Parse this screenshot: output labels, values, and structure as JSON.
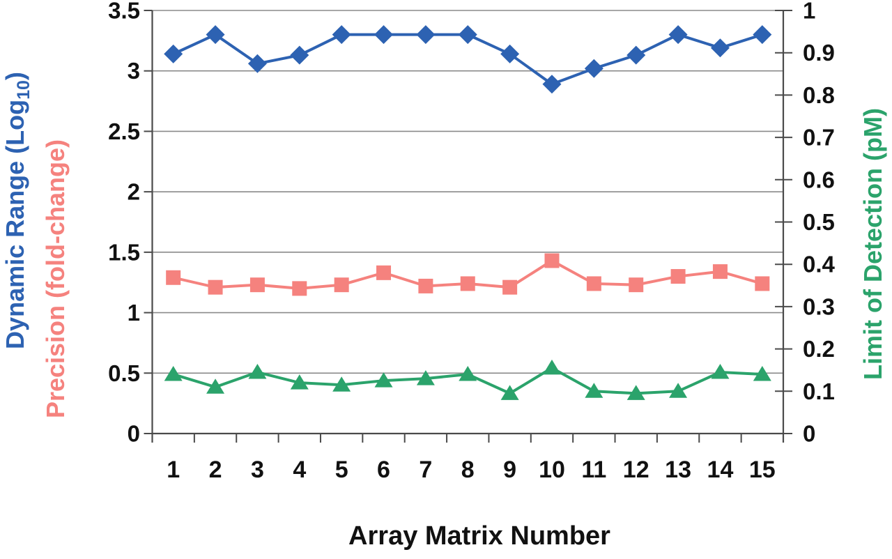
{
  "chart_data": {
    "type": "line",
    "title": "",
    "xlabel": "Array Matrix Number",
    "categories": [
      "1",
      "2",
      "3",
      "4",
      "5",
      "6",
      "7",
      "8",
      "9",
      "10",
      "11",
      "12",
      "13",
      "14",
      "15"
    ],
    "grid": true,
    "legend": false,
    "colors": {
      "axis": "#4a4a4a",
      "grid": "#8a8a8a",
      "text": "#111111"
    },
    "axes": {
      "left": {
        "range": [
          0,
          3.5
        ],
        "tick_values": [
          0,
          0.5,
          1,
          1.5,
          2,
          2.5,
          3,
          3.5
        ],
        "tick_labels": [
          "0",
          "0.5",
          "1",
          "1.5",
          "2",
          "2.5",
          "3",
          "3.5"
        ],
        "titles": [
          {
            "pre": "Dynamic Range (Log",
            "sub": "10",
            "post": ")",
            "color": "#2D62B2"
          },
          {
            "text": "Precision (fold-change)",
            "color": "#F5827E"
          }
        ]
      },
      "right": {
        "range": [
          0,
          1
        ],
        "tick_values": [
          0,
          0.1,
          0.2,
          0.3,
          0.4,
          0.5,
          0.6,
          0.7,
          0.8,
          0.9,
          1
        ],
        "tick_labels": [
          "0",
          "0.1",
          "0.2",
          "0.3",
          "0.4",
          "0.5",
          "0.6",
          "0.7",
          "0.8",
          "0.9",
          "1"
        ],
        "title": {
          "text": "Limit of Detection (pM)",
          "color": "#2BA36B"
        }
      }
    },
    "series": [
      {
        "name": "Dynamic Range (Log10)",
        "axis": "left",
        "marker": "diamond",
        "color": "#2D62B2",
        "values": [
          3.14,
          3.3,
          3.06,
          3.13,
          3.3,
          3.3,
          3.3,
          3.3,
          3.14,
          2.89,
          3.02,
          3.13,
          3.3,
          3.19,
          3.3
        ]
      },
      {
        "name": "Precision (fold-change)",
        "axis": "left",
        "marker": "square",
        "color": "#F5827E",
        "values": [
          1.29,
          1.21,
          1.23,
          1.2,
          1.23,
          1.33,
          1.22,
          1.24,
          1.21,
          1.43,
          1.24,
          1.23,
          1.3,
          1.34,
          1.24
        ]
      },
      {
        "name": "Limit of Detection (pM)",
        "axis": "right",
        "marker": "triangle",
        "color": "#2BA36B",
        "values": [
          0.14,
          0.11,
          0.145,
          0.12,
          0.115,
          0.125,
          0.13,
          0.14,
          0.095,
          0.155,
          0.1,
          0.095,
          0.1,
          0.145,
          0.14
        ]
      }
    ]
  }
}
